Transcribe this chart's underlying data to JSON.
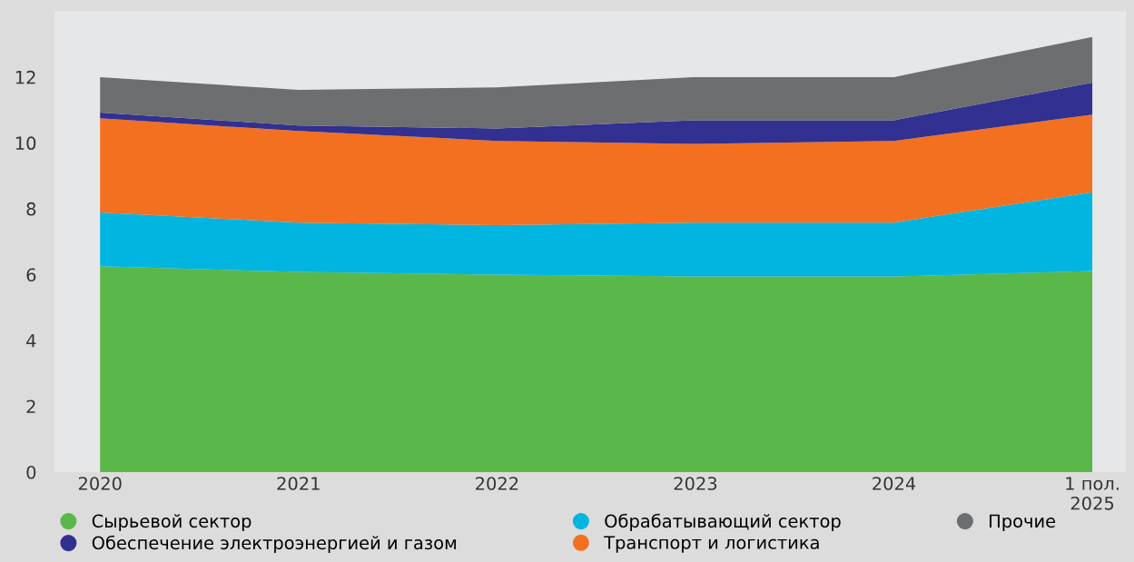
{
  "chart_data": {
    "type": "area",
    "stacked": true,
    "categories": [
      "2020",
      "2021",
      "2022",
      "2023",
      "2024",
      "1 пол.\n2025"
    ],
    "series": [
      {
        "name": "Сырьевой сектор",
        "color": "#5ab84b",
        "values": [
          6.25,
          6.08,
          6.0,
          5.94,
          5.94,
          6.11
        ]
      },
      {
        "name": "Обрабатывающий сектор",
        "color": "#00b5e0",
        "values": [
          1.64,
          1.5,
          1.5,
          1.64,
          1.64,
          2.39
        ]
      },
      {
        "name": "Транспорт и логистика",
        "color": "#f37021",
        "values": [
          2.86,
          2.78,
          2.56,
          2.39,
          2.48,
          2.36
        ]
      },
      {
        "name": "Обеспечение электроэнергией и газом",
        "color": "#323090",
        "values": [
          0.17,
          0.17,
          0.38,
          0.72,
          0.63,
          0.97
        ]
      },
      {
        "name": "Прочие",
        "color": "#6d6e70",
        "values": [
          1.08,
          1.08,
          1.25,
          1.31,
          1.31,
          1.39
        ]
      }
    ],
    "ylim": [
      0,
      14
    ],
    "yticks": [
      0,
      2,
      4,
      6,
      8,
      10,
      12
    ],
    "grid": false,
    "legend": "bottom"
  }
}
